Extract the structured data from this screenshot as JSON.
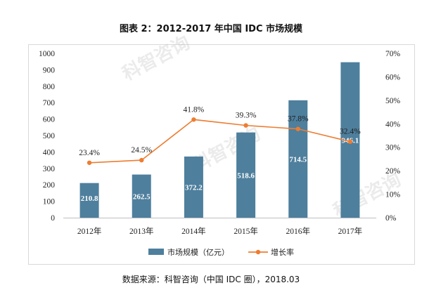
{
  "title": "图表 2：2012-2017 年中国 IDC 市场规模",
  "source": "数据来源：科智咨询（中国 IDC 圈），2018.03",
  "watermark": "科智咨询",
  "chart_data": {
    "type": "bar",
    "categories": [
      "2012年",
      "2013年",
      "2014年",
      "2015年",
      "2016年",
      "2017年"
    ],
    "series": [
      {
        "name": "市场规模（亿元）",
        "type": "bar",
        "axis": "left",
        "color": "#4e7f9d",
        "values": [
          210.8,
          262.5,
          372.2,
          518.6,
          714.5,
          946.1
        ],
        "labels": [
          "210.8",
          "262.5",
          "372.2",
          "518.6",
          "714.5",
          "946.1"
        ]
      },
      {
        "name": "增长率",
        "type": "line",
        "axis": "right",
        "color": "#ed7d31",
        "values": [
          23.4,
          24.5,
          41.8,
          39.3,
          37.8,
          32.4
        ],
        "labels": [
          "23.4%",
          "24.5%",
          "41.8%",
          "39.3%",
          "37.8%",
          "32.4%"
        ]
      }
    ],
    "y_left": {
      "min": 0,
      "max": 1000,
      "ticks": [
        "0",
        "100",
        "200",
        "300",
        "400",
        "500",
        "600",
        "700",
        "800",
        "900",
        "1000"
      ]
    },
    "y_right": {
      "min": 0,
      "max": 70,
      "ticks": [
        "0%",
        "10%",
        "20%",
        "30%",
        "40%",
        "50%",
        "60%",
        "70%"
      ]
    },
    "grid": false,
    "legend_position": "bottom"
  }
}
